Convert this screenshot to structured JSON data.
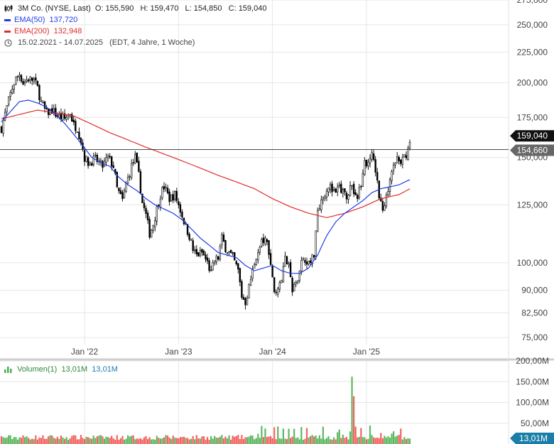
{
  "header": {
    "title": "3M Co. (NYSE, Last)",
    "ohlc": "O: 155,590   H: 159,470   L: 154,850   C: 159,040",
    "ema50_label": "EMA(50)",
    "ema50_value": "137,720",
    "ema200_label": "EMA(200)",
    "ema200_value": "132,948",
    "range_text": "15.02.2021 - 14.07.2025",
    "range_note": "(EDT, 4 Jahre, 1 Woche)",
    "volume_label": "Volumen(1)",
    "volume_value_1": "13,01M",
    "volume_value_2": "13,01M"
  },
  "colors": {
    "candle": "#000000",
    "ema50": "#1e3ce6",
    "ema200": "#e02c2c",
    "vol_up": "#4caf50",
    "vol_down": "#ef5350",
    "vol_tag": "#1a7fa8",
    "price_tag": "#111111",
    "prev_tag": "#666666",
    "grid": "#e6e6e6"
  },
  "chart_data": {
    "type": "candlestick",
    "x_tick_labels": [
      "Jan '22",
      "Jan '23",
      "Jan '24",
      "Jan '25"
    ],
    "x_tick_weeks": [
      46,
      98,
      150,
      202
    ],
    "price_scale": "log",
    "price_ticks": [
      75000,
      82500,
      90000,
      100000,
      125000,
      150000,
      175000,
      200000,
      225000,
      250000,
      275000
    ],
    "price_tick_labels": [
      "75,000",
      "82,500",
      "90,000",
      "100,000",
      "125,000",
      "150,000",
      "175,000",
      "200,000",
      "225,000",
      "250,000",
      "275,000"
    ],
    "price_ylim": [
      73000,
      275000
    ],
    "last_price": 159040,
    "last_price_label": "159,040",
    "prev_close": 154660,
    "prev_close_label": "154,660",
    "volume_ticks": [
      50000000,
      100000000,
      150000000,
      200000000
    ],
    "volume_tick_labels": [
      "50,00M",
      "100,00M",
      "150,00M",
      "200,00M"
    ],
    "volume_ylim": [
      0,
      200000000
    ],
    "last_volume_label": "13,01M",
    "close_anchors": [
      [
        0,
        168000
      ],
      [
        3,
        182000
      ],
      [
        6,
        196000
      ],
      [
        8,
        203000
      ],
      [
        10,
        207000
      ],
      [
        12,
        200000
      ],
      [
        15,
        203000
      ],
      [
        18,
        202000
      ],
      [
        20,
        196000
      ],
      [
        22,
        185000
      ],
      [
        25,
        178000
      ],
      [
        28,
        180000
      ],
      [
        31,
        176000
      ],
      [
        35,
        174000
      ],
      [
        38,
        178000
      ],
      [
        40,
        170000
      ],
      [
        42,
        168000
      ],
      [
        44,
        160000
      ],
      [
        46,
        150000
      ],
      [
        48,
        147000
      ],
      [
        52,
        149000
      ],
      [
        56,
        145000
      ],
      [
        59,
        150000
      ],
      [
        62,
        145000
      ],
      [
        64,
        133000
      ],
      [
        67,
        127000
      ],
      [
        69,
        135000
      ],
      [
        72,
        145000
      ],
      [
        74,
        150000
      ],
      [
        76,
        140000
      ],
      [
        78,
        126000
      ],
      [
        80,
        120000
      ],
      [
        82,
        112000
      ],
      [
        84,
        116000
      ],
      [
        86,
        123000
      ],
      [
        88,
        130000
      ],
      [
        90,
        134000
      ],
      [
        93,
        128000
      ],
      [
        96,
        130000
      ],
      [
        98,
        125000
      ],
      [
        100,
        120000
      ],
      [
        102,
        115000
      ],
      [
        104,
        111000
      ],
      [
        106,
        105000
      ],
      [
        108,
        103000
      ],
      [
        111,
        104000
      ],
      [
        114,
        100000
      ],
      [
        116,
        96000
      ],
      [
        118,
        101000
      ],
      [
        120,
        102000
      ],
      [
        122,
        110000
      ],
      [
        124,
        106000
      ],
      [
        126,
        104000
      ],
      [
        128,
        102000
      ],
      [
        131,
        97000
      ],
      [
        133,
        88000
      ],
      [
        135,
        86000
      ],
      [
        137,
        91000
      ],
      [
        139,
        97000
      ],
      [
        141,
        103000
      ],
      [
        143,
        107000
      ],
      [
        145,
        109000
      ],
      [
        147,
        108000
      ],
      [
        149,
        98000
      ],
      [
        151,
        90000
      ],
      [
        153,
        91000
      ],
      [
        155,
        94000
      ],
      [
        157,
        102000
      ],
      [
        159,
        98000
      ],
      [
        161,
        90000
      ],
      [
        163,
        92000
      ],
      [
        165,
        98000
      ],
      [
        167,
        102000
      ],
      [
        169,
        101000
      ],
      [
        171,
        100000
      ],
      [
        173,
        104000
      ],
      [
        175,
        123000
      ],
      [
        177,
        127000
      ],
      [
        179,
        131000
      ],
      [
        181,
        135000
      ],
      [
        183,
        132000
      ],
      [
        185,
        130000
      ],
      [
        187,
        134000
      ],
      [
        189,
        131000
      ],
      [
        191,
        130000
      ],
      [
        193,
        134000
      ],
      [
        195,
        131000
      ],
      [
        197,
        130000
      ],
      [
        199,
        133000
      ],
      [
        201,
        146000
      ],
      [
        203,
        149000
      ],
      [
        205,
        151000
      ],
      [
        207,
        143000
      ],
      [
        209,
        129000
      ],
      [
        211,
        122000
      ],
      [
        213,
        128000
      ],
      [
        215,
        140000
      ],
      [
        217,
        147000
      ],
      [
        219,
        149000
      ],
      [
        221,
        146000
      ],
      [
        223,
        150000
      ],
      [
        225,
        154660
      ],
      [
        226,
        159040
      ]
    ],
    "ema50_anchors": [
      [
        0,
        172000
      ],
      [
        5,
        179000
      ],
      [
        10,
        186000
      ],
      [
        15,
        187000
      ],
      [
        20,
        185000
      ],
      [
        25,
        182000
      ],
      [
        30,
        177000
      ],
      [
        35,
        171000
      ],
      [
        40,
        164000
      ],
      [
        45,
        157000
      ],
      [
        50,
        150000
      ],
      [
        55,
        147000
      ],
      [
        60,
        145000
      ],
      [
        65,
        139000
      ],
      [
        70,
        135000
      ],
      [
        75,
        132000
      ],
      [
        80,
        128000
      ],
      [
        85,
        125000
      ],
      [
        90,
        123000
      ],
      [
        95,
        121000
      ],
      [
        100,
        118000
      ],
      [
        105,
        114000
      ],
      [
        110,
        110000
      ],
      [
        115,
        107000
      ],
      [
        120,
        104000
      ],
      [
        125,
        103000
      ],
      [
        130,
        102000
      ],
      [
        135,
        99000
      ],
      [
        140,
        97000
      ],
      [
        145,
        98000
      ],
      [
        150,
        99000
      ],
      [
        155,
        97000
      ],
      [
        160,
        96000
      ],
      [
        165,
        96000
      ],
      [
        170,
        98000
      ],
      [
        175,
        103000
      ],
      [
        180,
        111000
      ],
      [
        185,
        117000
      ],
      [
        190,
        121000
      ],
      [
        195,
        124000
      ],
      [
        200,
        127000
      ],
      [
        205,
        131000
      ],
      [
        210,
        133000
      ],
      [
        215,
        134000
      ],
      [
        220,
        135000
      ],
      [
        226,
        137720
      ]
    ],
    "ema200_anchors": [
      [
        0,
        174000
      ],
      [
        20,
        180000
      ],
      [
        40,
        176000
      ],
      [
        60,
        165000
      ],
      [
        80,
        156000
      ],
      [
        100,
        148000
      ],
      [
        120,
        140000
      ],
      [
        140,
        133000
      ],
      [
        150,
        128000
      ],
      [
        160,
        124000
      ],
      [
        170,
        121000
      ],
      [
        180,
        119000
      ],
      [
        190,
        121000
      ],
      [
        200,
        124000
      ],
      [
        210,
        128000
      ],
      [
        220,
        130000
      ],
      [
        226,
        132948
      ]
    ]
  }
}
